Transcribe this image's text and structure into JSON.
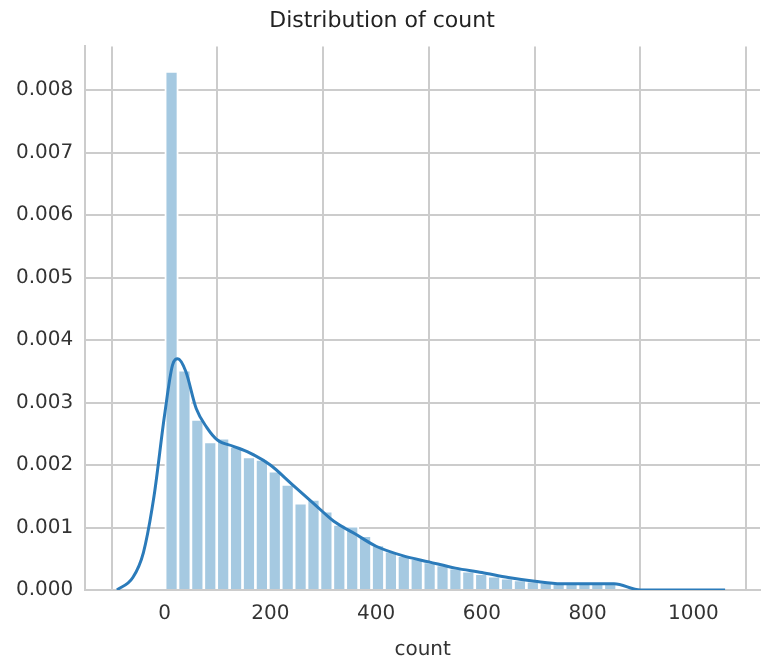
{
  "chart_data": {
    "type": "histogram",
    "title": "Distribution of count",
    "xlabel": "count",
    "xlim": [
      -150,
      1126
    ],
    "ylim": [
      0,
      0.0087
    ],
    "xticks": [
      0,
      200,
      400,
      600,
      800,
      1000
    ],
    "yticks": [
      {
        "value": 0,
        "label": "0.000"
      },
      {
        "value": 0.001,
        "label": "0.001"
      },
      {
        "value": 0.002,
        "label": "0.002"
      },
      {
        "value": 0.003,
        "label": "0.003"
      },
      {
        "value": 0.004,
        "label": "0.004"
      },
      {
        "value": 0.005,
        "label": "0.005"
      },
      {
        "value": 0.006,
        "label": "0.006"
      },
      {
        "value": 0.007,
        "label": "0.007"
      },
      {
        "value": 0.008,
        "label": "0.008"
      }
    ],
    "grid": true,
    "legend": false,
    "series": [
      {
        "color": "#a5c9e1",
        "bins": [
          1,
          25.4,
          49.8,
          74.2,
          98.6,
          123,
          147.4,
          171.8,
          196.2,
          220.6,
          245,
          269.4,
          293.8,
          318.2,
          342.6,
          367,
          391.4,
          415.8,
          440.2,
          464.6,
          489,
          513.4,
          537.8,
          562.2,
          586.6,
          611,
          635.4,
          659.8,
          684.2,
          708.6,
          733,
          757.4,
          781.8,
          806.2,
          830.6,
          855,
          879.4,
          903.8,
          928.2,
          952.6,
          977
        ],
        "values": [
          0.0083,
          0.00352,
          0.00273,
          0.00237,
          0.00243,
          0.0023,
          0.00213,
          0.00209,
          0.0019,
          0.00169,
          0.00139,
          0.00145,
          0.00126,
          0.00105,
          0.00102,
          0.00087,
          0.00072,
          0.00062,
          0.00055,
          0.0005,
          0.00045,
          0.0004,
          0.00035,
          0.0003,
          0.00026,
          0.00022,
          0.00019,
          0.00016,
          0.00014,
          0.00012,
          0.0001,
          0.0001,
          0.0001,
          0.0001,
          0.0001,
          0,
          0,
          0,
          0,
          0
        ]
      },
      {
        "type": "line",
        "color": "#2b7bba",
        "x": [
          -90,
          -60,
          -40,
          -20,
          0,
          15,
          25,
          40,
          60,
          80,
          100,
          130,
          160,
          200,
          240,
          280,
          320,
          360,
          400,
          450,
          500,
          550,
          600,
          650,
          700,
          750,
          800,
          850,
          900,
          950,
          1000,
          1060
        ],
        "values": [
          0,
          0.0002,
          0.0006,
          0.0015,
          0.0028,
          0.0036,
          0.0037,
          0.0035,
          0.0029,
          0.0026,
          0.0024,
          0.0023,
          0.0022,
          0.002,
          0.0017,
          0.0014,
          0.0011,
          0.0009,
          0.0007,
          0.00055,
          0.00045,
          0.00035,
          0.00028,
          0.0002,
          0.00014,
          0.0001,
          0.0001,
          0.0001,
          0,
          0,
          0,
          0
        ]
      }
    ]
  }
}
